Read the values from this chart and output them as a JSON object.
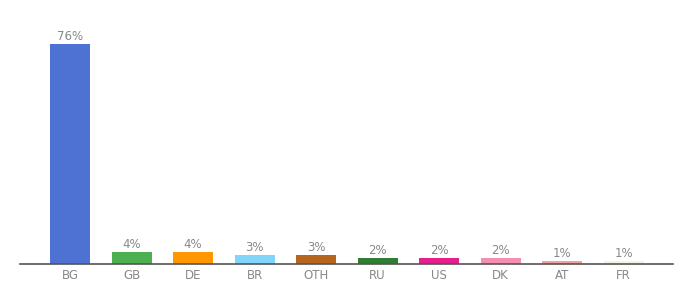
{
  "categories": [
    "BG",
    "GB",
    "DE",
    "BR",
    "OTH",
    "RU",
    "US",
    "DK",
    "AT",
    "FR"
  ],
  "values": [
    76,
    4,
    4,
    3,
    3,
    2,
    2,
    2,
    1,
    1
  ],
  "bar_colors": [
    "#4d72d4",
    "#4caf50",
    "#ff9800",
    "#81d4fa",
    "#b5651d",
    "#2e7d32",
    "#e91e8c",
    "#f48fb1",
    "#f4a0a0",
    "#f5f5dc"
  ],
  "labels": [
    "76%",
    "4%",
    "4%",
    "3%",
    "3%",
    "2%",
    "2%",
    "2%",
    "1%",
    "1%"
  ],
  "ylim": [
    0,
    86
  ],
  "background_color": "#ffffff",
  "label_fontsize": 8.5,
  "tick_fontsize": 8.5,
  "bar_width": 0.65
}
